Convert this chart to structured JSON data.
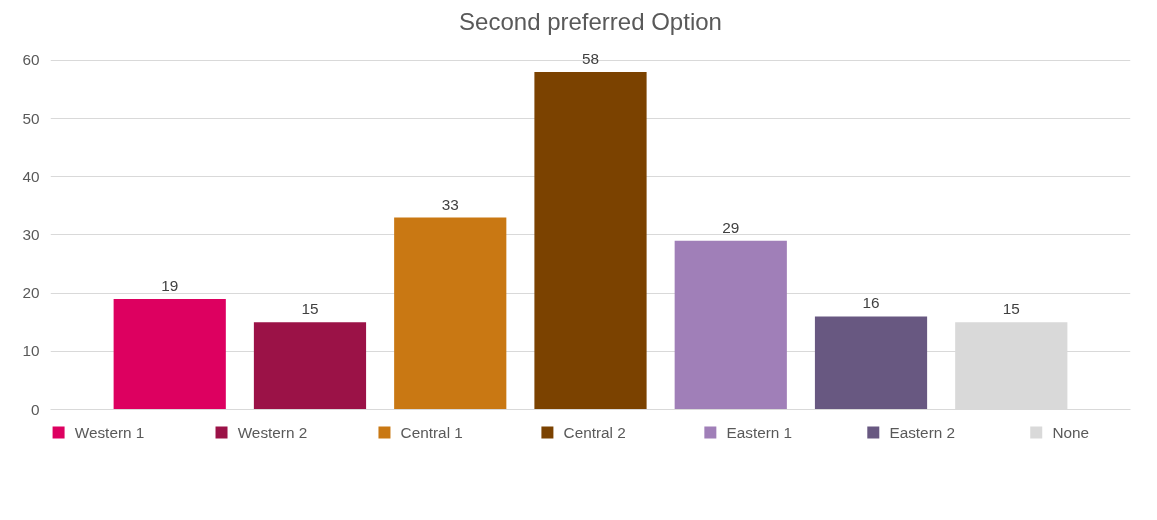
{
  "chart_data": {
    "type": "bar",
    "title": "Second preferred Option",
    "categories": [
      null,
      null,
      null,
      null,
      null,
      null,
      null
    ],
    "series": [
      {
        "name": "Western 1",
        "color": "#dd0060",
        "values": [
          19,
          null,
          null,
          null,
          null,
          null,
          null
        ]
      },
      {
        "name": "Western 2",
        "color": "#9b1247",
        "values": [
          null,
          15,
          null,
          null,
          null,
          null,
          null
        ]
      },
      {
        "name": "Central 1",
        "color": "#c97813",
        "values": [
          null,
          null,
          33,
          null,
          null,
          null,
          null
        ]
      },
      {
        "name": "Central 2",
        "color": "#7b4200",
        "values": [
          null,
          null,
          null,
          58,
          null,
          null,
          null
        ]
      },
      {
        "name": "Eastern 1",
        "color": "#a07fb8",
        "values": [
          null,
          null,
          null,
          null,
          29,
          null,
          null
        ]
      },
      {
        "name": "Eastern 2",
        "color": "#685881",
        "values": [
          null,
          null,
          null,
          null,
          null,
          16,
          null
        ]
      },
      {
        "name": "None",
        "color": "#d9d9d9",
        "values": [
          null,
          null,
          null,
          null,
          null,
          null,
          15
        ]
      }
    ],
    "ylim": [
      0,
      60
    ],
    "yticks": [
      0,
      10,
      20,
      30,
      40,
      50,
      60
    ],
    "grid": "y",
    "legend": "bottom",
    "data_labels": true
  }
}
